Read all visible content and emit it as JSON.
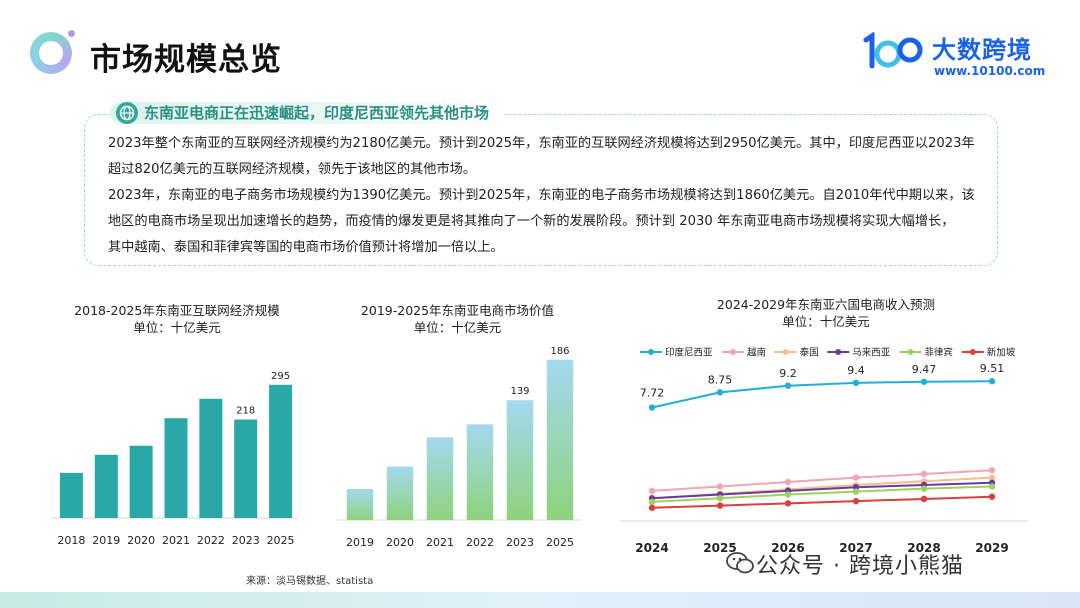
{
  "header": {
    "title": "市场规模总览",
    "logo_name": "大数跨境",
    "logo_url": "www.10100.com"
  },
  "summary": {
    "title": "东南亚电商正在迅速崛起，印度尼西亚领先其他市场",
    "lines": [
      "2023年整个东南亚的互联网经济规模约为2180亿美元。预计到2025年，东南亚的互联网经济规模将达到2950亿美元。其中，印度尼西亚以2023年",
      "超过820亿美元的互联网经济规模，领先于该地区的其他市场。",
      "2023年，东南亚的电子商务市场规模约为1390亿美元。预计到2025年，东南亚的电子商务市场规模将达到1860亿美元。自2010年代中期以来，该",
      "地区的电商市场呈现出加速增长的趋势，而疫情的爆发更是将其推向了一个新的发展阶段。预计到 2030 年东南亚电商市场规模将实现大幅增长，",
      "其中越南、泰国和菲律宾等国的电商市场价值预计将增加一倍以上。"
    ]
  },
  "chart_data": [
    {
      "type": "bar",
      "title": "2018-2025年东南亚互联网经济规模",
      "subtitle": "单位：十亿美元",
      "categories": [
        "2018",
        "2019",
        "2020",
        "2021",
        "2022",
        "2023",
        "2025"
      ],
      "values": [
        100,
        140,
        160,
        221,
        264,
        218,
        295
      ],
      "data_labels": {
        "2023": "218",
        "2025": "295"
      },
      "ylim": [
        0,
        310
      ],
      "color": "#2aa8a8",
      "grid": false
    },
    {
      "type": "bar",
      "title": "2019-2025年东南亚电商市场价值",
      "subtitle": "单位：十亿美元",
      "categories": [
        "2019",
        "2020",
        "2021",
        "2022",
        "2023",
        "2025"
      ],
      "values": [
        36,
        62,
        96,
        111,
        139,
        186
      ],
      "data_labels": {
        "2023": "139",
        "2025": "186"
      },
      "ylim": [
        0,
        195
      ],
      "gradient": [
        "#a3d9ef",
        "#8fd27c"
      ],
      "grid": false
    },
    {
      "type": "line",
      "title": "2024-2029年东南亚六国电商收入预测",
      "subtitle": "单位：十亿美元",
      "x": [
        "2024",
        "2025",
        "2026",
        "2027",
        "2028",
        "2029"
      ],
      "ylim": [
        0,
        10
      ],
      "legend_position": "top",
      "series": [
        {
          "name": "印度尼西亚",
          "color": "#22aed6",
          "values": [
            7.72,
            8.75,
            9.2,
            9.4,
            9.47,
            9.51
          ],
          "labels": [
            "7.72",
            "8.75",
            "9.2",
            "9.4",
            "9.47",
            "9.51"
          ]
        },
        {
          "name": "越南",
          "color": "#f0a4b4",
          "values": [
            2.05,
            2.35,
            2.65,
            2.95,
            3.2,
            3.45
          ]
        },
        {
          "name": "泰国",
          "color": "#f5be8c",
          "values": [
            1.55,
            1.85,
            2.15,
            2.45,
            2.7,
            2.95
          ]
        },
        {
          "name": "马来西亚",
          "color": "#6b3aa0",
          "values": [
            1.55,
            1.8,
            2.05,
            2.3,
            2.45,
            2.6
          ]
        },
        {
          "name": "菲律宾",
          "color": "#9bd45a",
          "values": [
            1.3,
            1.55,
            1.8,
            2.0,
            2.2,
            2.35
          ]
        },
        {
          "name": "新加坡",
          "color": "#d9403b",
          "values": [
            0.9,
            1.05,
            1.2,
            1.35,
            1.5,
            1.65
          ]
        }
      ]
    }
  ],
  "footer": {
    "source": "来源：淡马锡数据、statista",
    "watermark": "公众号 · 跨境小熊猫"
  },
  "colors": {
    "brand": "#1a63e8",
    "accent": "#2b8f82"
  }
}
